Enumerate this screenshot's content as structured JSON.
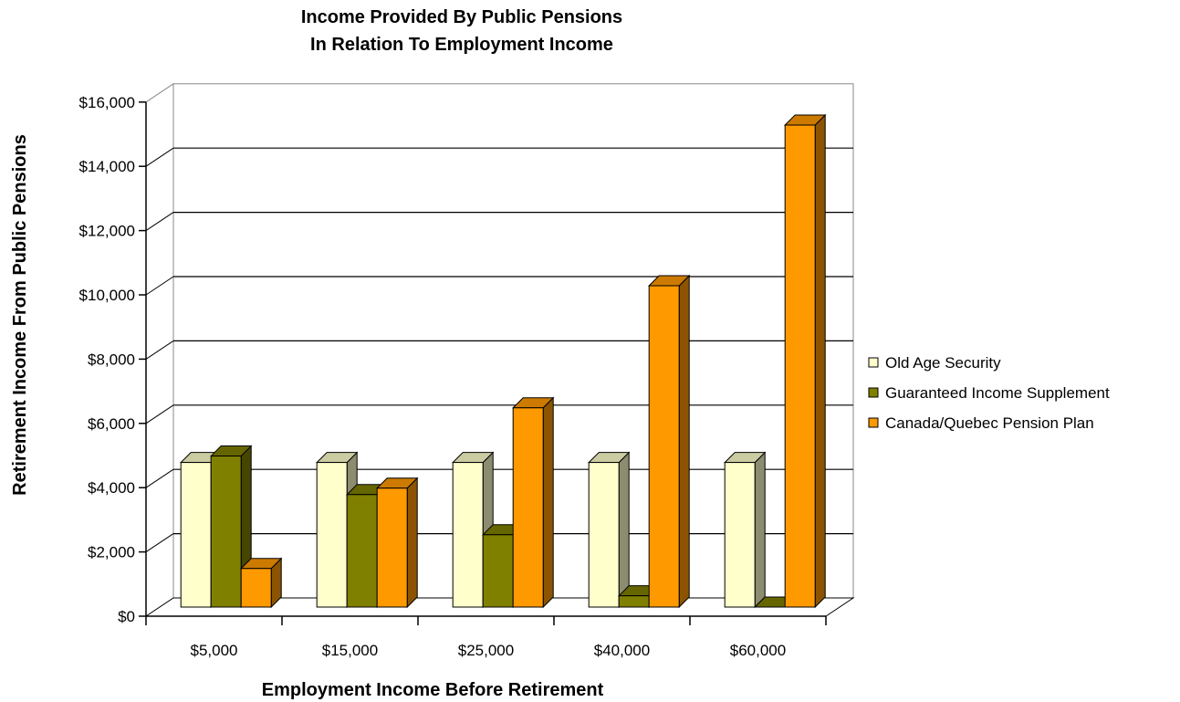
{
  "chart_data": {
    "type": "bar",
    "title": [
      "Income Provided By Public Pensions",
      "In Relation To Employment Income"
    ],
    "xlabel": "Employment Income Before Retirement",
    "ylabel": "Retirement Income From Public Pensions",
    "categories": [
      "$5,000",
      "$15,000",
      "$25,000",
      "$40,000",
      "$60,000"
    ],
    "ylim": [
      0,
      16000
    ],
    "yticks": [
      0,
      2000,
      4000,
      6000,
      8000,
      10000,
      12000,
      14000,
      16000
    ],
    "ytick_labels": [
      "$0",
      "$2,000",
      "$4,000",
      "$6,000",
      "$8,000",
      "$10,000",
      "$12,000",
      "$14,000",
      "$16,000"
    ],
    "grid": true,
    "legend_position": "right",
    "three_d": true,
    "series": [
      {
        "name": "Old Age Security",
        "color": "#FFFFCC",
        "values": [
          4500,
          4500,
          4500,
          4500,
          4500
        ]
      },
      {
        "name": "Guaranteed Income Supplement",
        "color": "#808000",
        "values": [
          4700,
          3500,
          2250,
          350,
          0
        ]
      },
      {
        "name": "Canada/Quebec Pension Plan",
        "color": "#FF9900",
        "values": [
          1200,
          3700,
          6200,
          10000,
          15000
        ]
      }
    ]
  }
}
